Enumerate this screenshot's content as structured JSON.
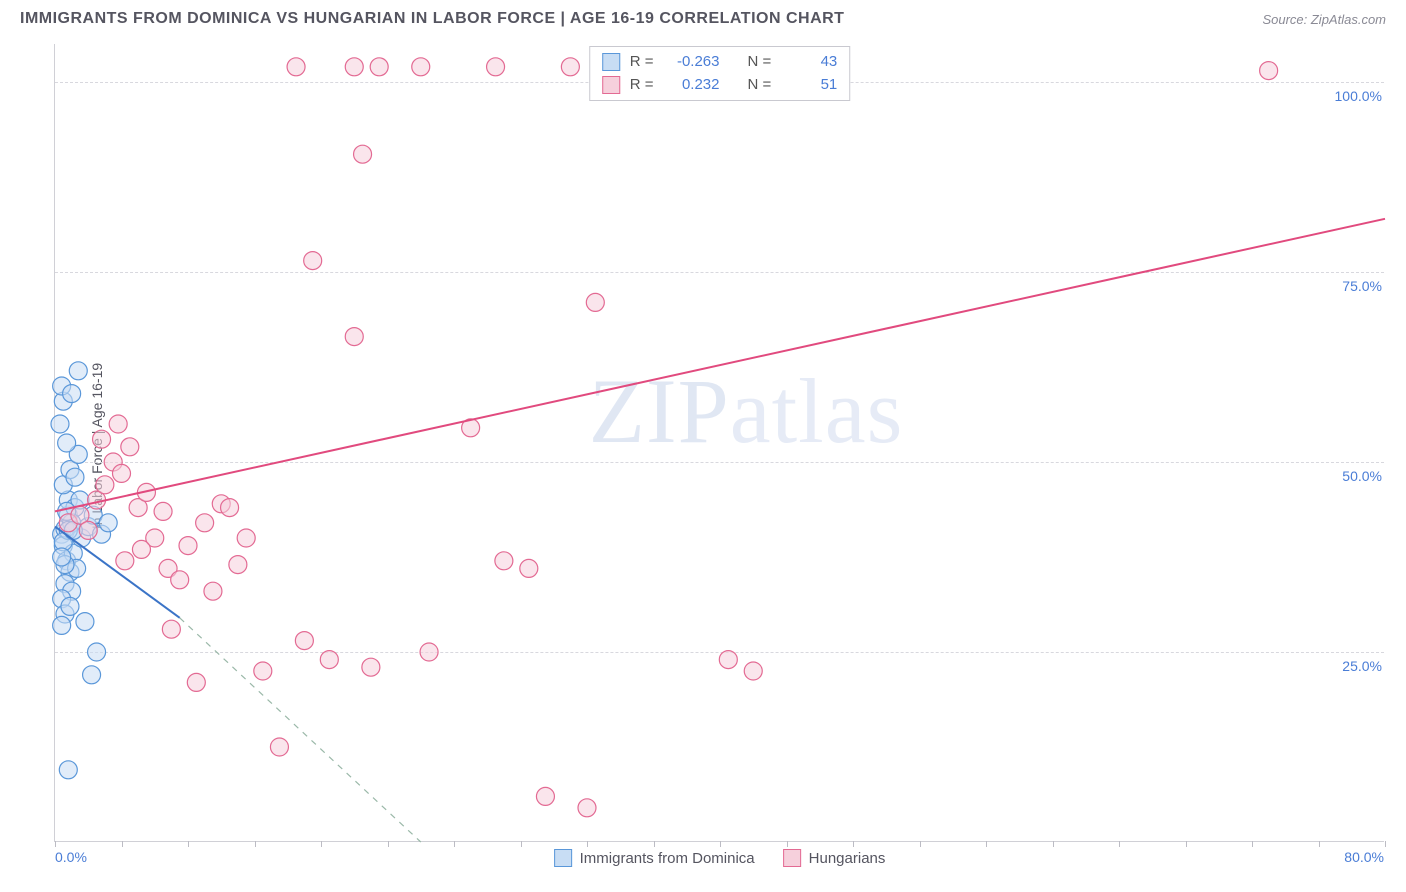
{
  "title": "IMMIGRANTS FROM DOMINICA VS HUNGARIAN IN LABOR FORCE | AGE 16-19 CORRELATION CHART",
  "source": "Source: ZipAtlas.com",
  "y_axis_label": "In Labor Force | Age 16-19",
  "watermark_bold": "ZIP",
  "watermark_light": "atlas",
  "chart": {
    "type": "scatter",
    "xlim": [
      0,
      80
    ],
    "ylim": [
      0,
      105
    ],
    "x_tick_step": 4,
    "y_ticks": [
      25,
      50,
      75,
      100
    ],
    "y_tick_labels": [
      "25.0%",
      "50.0%",
      "75.0%",
      "100.0%"
    ],
    "x_min_label": "0.0%",
    "x_max_label": "80.0%",
    "grid_color": "#d8d8de",
    "background_color": "#ffffff",
    "marker_radius": 9,
    "marker_stroke_width": 1.2,
    "trend_line_width": 2,
    "dashed_line_width": 1.2
  },
  "series": [
    {
      "id": "dominica",
      "label": "Immigrants from Dominica",
      "fill": "#c8ddf4",
      "stroke": "#5a97d9",
      "fill_opacity": 0.55,
      "R": "-0.263",
      "N": "43",
      "points": [
        [
          0.4,
          40.5
        ],
        [
          0.6,
          41.2
        ],
        [
          0.8,
          43.0
        ],
        [
          0.5,
          39.0
        ],
        [
          0.7,
          37.0
        ],
        [
          0.9,
          35.5
        ],
        [
          0.6,
          34.0
        ],
        [
          1.0,
          33.0
        ],
        [
          0.4,
          32.0
        ],
        [
          0.8,
          45.0
        ],
        [
          1.2,
          44.0
        ],
        [
          0.5,
          47.0
        ],
        [
          0.9,
          49.0
        ],
        [
          1.4,
          51.0
        ],
        [
          0.7,
          52.5
        ],
        [
          0.3,
          55.0
        ],
        [
          0.5,
          58.0
        ],
        [
          0.4,
          60.0
        ],
        [
          1.1,
          38.0
        ],
        [
          1.3,
          36.0
        ],
        [
          1.6,
          40.0
        ],
        [
          2.0,
          41.5
        ],
        [
          2.3,
          43.0
        ],
        [
          2.8,
          40.5
        ],
        [
          3.2,
          42.0
        ],
        [
          1.8,
          29.0
        ],
        [
          0.6,
          30.0
        ],
        [
          0.4,
          28.5
        ],
        [
          1.0,
          42.0
        ],
        [
          1.5,
          45.0
        ],
        [
          0.8,
          41.0
        ],
        [
          0.5,
          39.5
        ],
        [
          1.2,
          48.0
        ],
        [
          2.5,
          25.0
        ],
        [
          2.2,
          22.0
        ],
        [
          0.6,
          36.5
        ],
        [
          0.9,
          31.0
        ],
        [
          1.1,
          41.0
        ],
        [
          0.7,
          43.5
        ],
        [
          0.4,
          37.5
        ],
        [
          1.4,
          62.0
        ],
        [
          1.0,
          59.0
        ],
        [
          0.8,
          9.5
        ]
      ],
      "trend": {
        "x1": 0,
        "y1": 41.5,
        "x2": 7.5,
        "y2": 29.5
      },
      "trend_extend": {
        "x1": 7.5,
        "y1": 29.5,
        "x2": 22,
        "y2": 0
      }
    },
    {
      "id": "hungarians",
      "label": "Hungarians",
      "fill": "#f6d0dc",
      "stroke": "#e36a93",
      "fill_opacity": 0.55,
      "R": "0.232",
      "N": "51",
      "points": [
        [
          0.8,
          42.0
        ],
        [
          1.5,
          43.0
        ],
        [
          2.0,
          41.0
        ],
        [
          2.5,
          45.0
        ],
        [
          3.0,
          47.0
        ],
        [
          3.5,
          50.0
        ],
        [
          4.0,
          48.5
        ],
        [
          4.5,
          52.0
        ],
        [
          5.0,
          44.0
        ],
        [
          5.5,
          46.0
        ],
        [
          6.0,
          40.0
        ],
        [
          6.5,
          43.5
        ],
        [
          4.2,
          37.0
        ],
        [
          5.2,
          38.5
        ],
        [
          6.8,
          36.0
        ],
        [
          7.5,
          34.5
        ],
        [
          8.0,
          39.0
        ],
        [
          9.0,
          42.0
        ],
        [
          10.0,
          44.5
        ],
        [
          11.5,
          40.0
        ],
        [
          3.8,
          55.0
        ],
        [
          2.8,
          53.0
        ],
        [
          14.5,
          102.0
        ],
        [
          18.0,
          102.0
        ],
        [
          19.5,
          102.0
        ],
        [
          22.0,
          102.0
        ],
        [
          26.5,
          102.0
        ],
        [
          31.0,
          102.0
        ],
        [
          73.0,
          101.5
        ],
        [
          18.5,
          90.5
        ],
        [
          15.5,
          76.5
        ],
        [
          18.0,
          66.5
        ],
        [
          25.0,
          54.5
        ],
        [
          32.5,
          71.0
        ],
        [
          27.0,
          37.0
        ],
        [
          28.5,
          36.0
        ],
        [
          15.0,
          26.5
        ],
        [
          16.5,
          24.0
        ],
        [
          19.0,
          23.0
        ],
        [
          22.5,
          25.0
        ],
        [
          12.5,
          22.5
        ],
        [
          13.5,
          12.5
        ],
        [
          29.5,
          6.0
        ],
        [
          32.0,
          4.5
        ],
        [
          40.5,
          24.0
        ],
        [
          42.0,
          22.5
        ],
        [
          11.0,
          36.5
        ],
        [
          9.5,
          33.0
        ],
        [
          7.0,
          28.0
        ],
        [
          8.5,
          21.0
        ],
        [
          10.5,
          44.0
        ]
      ],
      "trend": {
        "x1": 0,
        "y1": 43.5,
        "x2": 80,
        "y2": 82.0
      }
    }
  ],
  "stats_legend": {
    "R_prefix": "R =",
    "N_prefix": "N ="
  },
  "colors": {
    "axis": "#d0d0d6",
    "text_primary": "#555560",
    "text_value": "#4a7dd6",
    "blue_trend": "#3b74c7",
    "blue_dash": "#9ab8a8",
    "pink_trend": "#e14a7e"
  }
}
